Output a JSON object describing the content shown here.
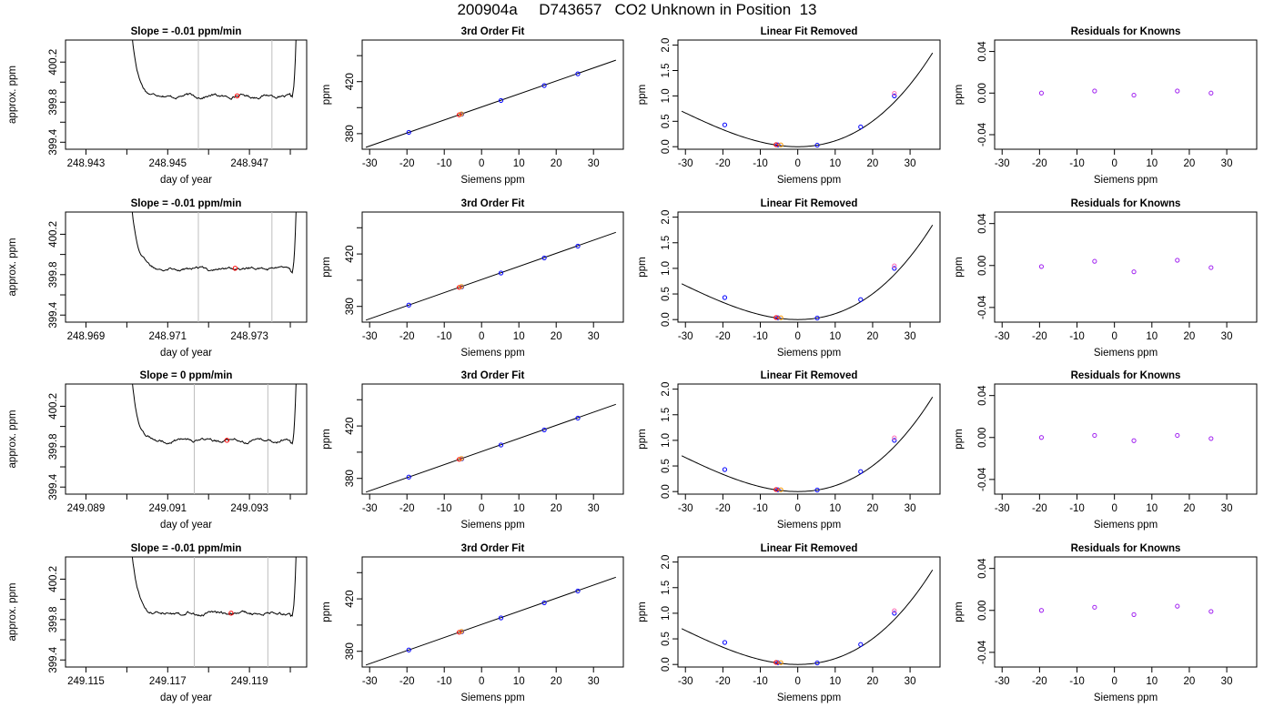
{
  "figure_title": "200904a     D743657   CO2 Unknown in Position  13",
  "colors": {
    "trace": "#000000",
    "marker_blue": "#0000ff",
    "marker_red": "#ff0000",
    "marker_purple": "#a020f0",
    "marker_orange": "#ff9900",
    "marker_pink": "#ff69b4",
    "guide_line": "#bebebe"
  },
  "chart_data": [
    {
      "type": "line",
      "row": 1,
      "panel": "time",
      "title": "Slope =  -0.01  ppm/min",
      "xlabel": "day of year",
      "ylabel": "approx. ppm",
      "xlim": [
        248.9425,
        248.9484
      ],
      "ylim": [
        399.33,
        400.42
      ],
      "x_ticks": [
        "248.943",
        "248.945",
        "248.947"
      ],
      "x_tick_values": [
        248.943,
        248.945,
        248.947
      ],
      "x_minor_ticks": [
        248.944,
        248.946,
        248.948
      ],
      "y_ticks": [
        "399.4",
        "399.8",
        "400.2"
      ],
      "y_tick_values": [
        399.4,
        399.8,
        400.2
      ],
      "y_minor_ticks": [
        399.6,
        400.0
      ],
      "t_start": 248.944,
      "t_end": 248.9482,
      "baseline": 399.86,
      "marker": [
        248.9467,
        399.863
      ],
      "guide_lines": [
        248.94575,
        248.94755
      ]
    },
    {
      "type": "scatter",
      "row": 1,
      "panel": "fit",
      "title": "3rd Order Fit",
      "xlabel": "Siemens ppm",
      "ylabel": "ppm",
      "xlim": [
        -32,
        38
      ],
      "ylim": [
        368,
        452
      ],
      "x_ticks": [
        -30,
        -20,
        -10,
        0,
        10,
        20,
        30
      ],
      "y_ticks": [
        "380",
        "420"
      ],
      "y_tick_values": [
        380,
        420
      ],
      "y_minor_ticks": [
        400,
        440
      ],
      "line": [
        [
          -31,
          369.5
        ],
        [
          36,
          436.5
        ]
      ],
      "points": [
        [
          -19.5,
          381
        ],
        [
          -5.3,
          395
        ],
        [
          5.2,
          405.5
        ],
        [
          16.8,
          417
        ],
        [
          25.8,
          426
        ]
      ],
      "unknown_x": -6.0
    },
    {
      "type": "line",
      "row": 1,
      "panel": "linear_removed",
      "title": "Linear Fit Removed",
      "xlabel": "Siemens ppm",
      "ylabel": "ppm",
      "xlim": [
        -32,
        38
      ],
      "ylim": [
        -0.05,
        2.1
      ],
      "x_ticks": [
        -30,
        -20,
        -10,
        0,
        10,
        20,
        30
      ],
      "y_ticks": [
        "0.0",
        "0.5",
        "1.0",
        "1.5",
        "2.0"
      ],
      "y_tick_values": [
        0,
        0.5,
        1.0,
        1.5,
        2.0
      ],
      "curve_coef": [
        0.0,
        0.00128,
        1.42e-05
      ],
      "points": [
        [
          -19.5,
          0.43
        ],
        [
          -5.3,
          0.035
        ],
        [
          5.2,
          0.03
        ],
        [
          16.8,
          0.39
        ],
        [
          25.8,
          1.0
        ]
      ],
      "unknown_x": -5.8,
      "unknown_y": 0.04,
      "top_point": [
        25.8,
        1.05
      ]
    },
    {
      "type": "scatter",
      "row": 1,
      "panel": "residuals",
      "title": "Residuals for Knowns",
      "xlabel": "Siemens ppm",
      "ylabel": "ppm",
      "xlim": [
        -32,
        38
      ],
      "ylim": [
        -0.054,
        0.051
      ],
      "x_ticks": [
        -30,
        -20,
        -10,
        0,
        10,
        20,
        30
      ],
      "y_ticks": [
        "-0.04",
        "0.00",
        "0.04"
      ],
      "y_tick_values": [
        -0.04,
        0.0,
        0.04
      ],
      "points": [
        [
          -19.5,
          0.0
        ],
        [
          -5.3,
          0.002
        ],
        [
          5.2,
          -0.002
        ],
        [
          16.8,
          0.002
        ],
        [
          25.8,
          0.0
        ]
      ]
    },
    {
      "type": "line",
      "row": 2,
      "panel": "time",
      "title": "Slope =  -0.01  ppm/min",
      "xlabel": "day of year",
      "ylabel": "approx. ppm",
      "xlim": [
        248.9685,
        248.9744
      ],
      "ylim": [
        399.33,
        400.42
      ],
      "x_ticks": [
        "248.969",
        "248.971",
        "248.973"
      ],
      "x_tick_values": [
        248.969,
        248.971,
        248.973
      ],
      "x_minor_ticks": [
        248.97,
        248.972,
        248.974
      ],
      "y_ticks": [
        "399.4",
        "399.8",
        "400.2"
      ],
      "y_tick_values": [
        399.4,
        399.8,
        400.2
      ],
      "y_minor_ticks": [
        399.6,
        400.0
      ],
      "t_start": 248.97,
      "t_end": 248.9742,
      "baseline": 399.86,
      "marker": [
        248.97265,
        399.863
      ],
      "guide_lines": [
        248.97175,
        248.97355
      ]
    },
    {
      "type": "scatter",
      "row": 2,
      "panel": "fit",
      "title": "3rd Order Fit",
      "xlabel": "Siemens ppm",
      "ylabel": "ppm",
      "xlim": [
        -32,
        38
      ],
      "ylim": [
        368,
        452
      ],
      "x_ticks": [
        -30,
        -20,
        -10,
        0,
        10,
        20,
        30
      ],
      "y_ticks": [
        "380",
        "420"
      ],
      "y_tick_values": [
        380,
        420
      ],
      "y_minor_ticks": [
        400,
        440
      ],
      "line": [
        [
          -31,
          369.5
        ],
        [
          36,
          436.5
        ]
      ],
      "points": [
        [
          -19.5,
          381
        ],
        [
          -5.3,
          395
        ],
        [
          5.2,
          405.5
        ],
        [
          16.8,
          417
        ],
        [
          25.8,
          426
        ]
      ],
      "unknown_x": -6.0
    },
    {
      "type": "line",
      "row": 2,
      "panel": "linear_removed",
      "title": "Linear Fit Removed",
      "xlabel": "Siemens ppm",
      "ylabel": "ppm",
      "xlim": [
        -32,
        38
      ],
      "ylim": [
        -0.05,
        2.1
      ],
      "x_ticks": [
        -30,
        -20,
        -10,
        0,
        10,
        20,
        30
      ],
      "y_ticks": [
        "0.0",
        "0.5",
        "1.0",
        "1.5",
        "2.0"
      ],
      "y_tick_values": [
        0,
        0.5,
        1.0,
        1.5,
        2.0
      ],
      "curve_coef": [
        0.0,
        0.00128,
        1.42e-05
      ],
      "points": [
        [
          -19.5,
          0.43
        ],
        [
          -5.3,
          0.035
        ],
        [
          5.2,
          0.03
        ],
        [
          16.8,
          0.39
        ],
        [
          25.8,
          1.0
        ]
      ],
      "unknown_x": -5.8,
      "unknown_y": 0.04,
      "top_point": [
        25.8,
        1.05
      ]
    },
    {
      "type": "scatter",
      "row": 2,
      "panel": "residuals",
      "title": "Residuals for Knowns",
      "xlabel": "Siemens ppm",
      "ylabel": "ppm",
      "xlim": [
        -32,
        38
      ],
      "ylim": [
        -0.054,
        0.051
      ],
      "x_ticks": [
        -30,
        -20,
        -10,
        0,
        10,
        20,
        30
      ],
      "y_ticks": [
        "-0.04",
        "0.00",
        "0.04"
      ],
      "y_tick_values": [
        -0.04,
        0.0,
        0.04
      ],
      "points": [
        [
          -19.5,
          -0.001
        ],
        [
          -5.3,
          0.004
        ],
        [
          5.2,
          -0.006
        ],
        [
          16.8,
          0.005
        ],
        [
          25.8,
          -0.002
        ]
      ]
    },
    {
      "type": "line",
      "row": 3,
      "panel": "time",
      "title": "Slope =  0  ppm/min",
      "xlabel": "day of year",
      "ylabel": "approx. ppm",
      "xlim": [
        249.0885,
        249.0944
      ],
      "ylim": [
        399.33,
        400.42
      ],
      "x_ticks": [
        "249.089",
        "249.091",
        "249.093"
      ],
      "x_tick_values": [
        249.089,
        249.091,
        249.093
      ],
      "x_minor_ticks": [
        249.09,
        249.092,
        249.094
      ],
      "y_ticks": [
        "399.4",
        "399.8",
        "400.2"
      ],
      "y_tick_values": [
        399.4,
        399.8,
        400.2
      ],
      "y_minor_ticks": [
        399.6,
        400.0
      ],
      "t_start": 249.09,
      "t_end": 249.0942,
      "baseline": 399.86,
      "marker": [
        249.09245,
        399.863
      ],
      "guide_lines": [
        249.09165,
        249.09345
      ]
    },
    {
      "type": "scatter",
      "row": 3,
      "panel": "fit",
      "title": "3rd Order Fit",
      "xlabel": "Siemens ppm",
      "ylabel": "ppm",
      "xlim": [
        -32,
        38
      ],
      "ylim": [
        368,
        452
      ],
      "x_ticks": [
        -30,
        -20,
        -10,
        0,
        10,
        20,
        30
      ],
      "y_ticks": [
        "380",
        "420"
      ],
      "y_tick_values": [
        380,
        420
      ],
      "y_minor_ticks": [
        400,
        440
      ],
      "line": [
        [
          -31,
          369.5
        ],
        [
          36,
          436.5
        ]
      ],
      "points": [
        [
          -19.5,
          381
        ],
        [
          -5.3,
          395
        ],
        [
          5.2,
          405.5
        ],
        [
          16.8,
          417
        ],
        [
          25.8,
          426
        ]
      ],
      "unknown_x": -6.0
    },
    {
      "type": "line",
      "row": 3,
      "panel": "linear_removed",
      "title": "Linear Fit Removed",
      "xlabel": "Siemens ppm",
      "ylabel": "ppm",
      "xlim": [
        -32,
        38
      ],
      "ylim": [
        -0.05,
        2.1
      ],
      "x_ticks": [
        -30,
        -20,
        -10,
        0,
        10,
        20,
        30
      ],
      "y_ticks": [
        "0.0",
        "0.5",
        "1.0",
        "1.5",
        "2.0"
      ],
      "y_tick_values": [
        0,
        0.5,
        1.0,
        1.5,
        2.0
      ],
      "curve_coef": [
        0.0,
        0.00128,
        1.42e-05
      ],
      "points": [
        [
          -19.5,
          0.43
        ],
        [
          -5.3,
          0.035
        ],
        [
          5.2,
          0.03
        ],
        [
          16.8,
          0.39
        ],
        [
          25.8,
          1.0
        ]
      ],
      "unknown_x": -5.8,
      "unknown_y": 0.04,
      "top_point": [
        25.8,
        1.05
      ]
    },
    {
      "type": "scatter",
      "row": 3,
      "panel": "residuals",
      "title": "Residuals for Knowns",
      "xlabel": "Siemens ppm",
      "ylabel": "ppm",
      "xlim": [
        -32,
        38
      ],
      "ylim": [
        -0.054,
        0.051
      ],
      "x_ticks": [
        -30,
        -20,
        -10,
        0,
        10,
        20,
        30
      ],
      "y_ticks": [
        "-0.04",
        "0.00",
        "0.04"
      ],
      "y_tick_values": [
        -0.04,
        0.0,
        0.04
      ],
      "points": [
        [
          -19.5,
          0.0
        ],
        [
          -5.3,
          0.002
        ],
        [
          5.2,
          -0.003
        ],
        [
          16.8,
          0.002
        ],
        [
          25.8,
          -0.001
        ]
      ]
    },
    {
      "type": "line",
      "row": 4,
      "panel": "time",
      "title": "Slope =  -0.01  ppm/min",
      "xlabel": "day of year",
      "ylabel": "approx. ppm",
      "xlim": [
        249.1145,
        249.1204
      ],
      "ylim": [
        399.33,
        400.42
      ],
      "x_ticks": [
        "249.115",
        "249.117",
        "249.119"
      ],
      "x_tick_values": [
        249.115,
        249.117,
        249.119
      ],
      "x_minor_ticks": [
        249.116,
        249.118,
        249.12
      ],
      "y_ticks": [
        "399.4",
        "399.8",
        "400.2"
      ],
      "y_tick_values": [
        399.4,
        399.8,
        400.2
      ],
      "y_minor_ticks": [
        399.6,
        400.0
      ],
      "t_start": 249.116,
      "t_end": 249.1202,
      "baseline": 399.86,
      "marker": [
        249.11855,
        399.863
      ],
      "guide_lines": [
        249.11765,
        249.11945
      ]
    },
    {
      "type": "scatter",
      "row": 4,
      "panel": "fit",
      "title": "3rd Order Fit",
      "xlabel": "Siemens ppm",
      "ylabel": "ppm",
      "xlim": [
        -32,
        38
      ],
      "ylim": [
        368,
        452
      ],
      "x_ticks": [
        -30,
        -20,
        -10,
        0,
        10,
        20,
        30
      ],
      "y_ticks": [
        "380",
        "420"
      ],
      "y_tick_values": [
        380,
        420
      ],
      "y_minor_ticks": [
        400,
        440
      ],
      "line": [
        [
          -31,
          369.5
        ],
        [
          36,
          436.5
        ]
      ],
      "points": [
        [
          -19.5,
          381
        ],
        [
          -5.3,
          395
        ],
        [
          5.2,
          405.5
        ],
        [
          16.8,
          417
        ],
        [
          25.8,
          426
        ]
      ],
      "unknown_x": -6.0
    },
    {
      "type": "line",
      "row": 4,
      "panel": "linear_removed",
      "title": "Linear Fit Removed",
      "xlabel": "Siemens ppm",
      "ylabel": "ppm",
      "xlim": [
        -32,
        38
      ],
      "ylim": [
        -0.05,
        2.1
      ],
      "x_ticks": [
        -30,
        -20,
        -10,
        0,
        10,
        20,
        30
      ],
      "y_ticks": [
        "0.0",
        "0.5",
        "1.0",
        "1.5",
        "2.0"
      ],
      "y_tick_values": [
        0,
        0.5,
        1.0,
        1.5,
        2.0
      ],
      "curve_coef": [
        0.0,
        0.00128,
        1.42e-05
      ],
      "points": [
        [
          -19.5,
          0.43
        ],
        [
          -5.3,
          0.035
        ],
        [
          5.2,
          0.03
        ],
        [
          16.8,
          0.39
        ],
        [
          25.8,
          1.0
        ]
      ],
      "unknown_x": -5.8,
      "unknown_y": 0.04,
      "top_point": [
        25.8,
        1.05
      ]
    },
    {
      "type": "scatter",
      "row": 4,
      "panel": "residuals",
      "title": "Residuals for Knowns",
      "xlabel": "Siemens ppm",
      "ylabel": "ppm",
      "xlim": [
        -32,
        38
      ],
      "ylim": [
        -0.054,
        0.051
      ],
      "x_ticks": [
        -30,
        -20,
        -10,
        0,
        10,
        20,
        30
      ],
      "y_ticks": [
        "-0.04",
        "0.00",
        "0.04"
      ],
      "y_tick_values": [
        -0.04,
        0.0,
        0.04
      ],
      "points": [
        [
          -19.5,
          0.0
        ],
        [
          -5.3,
          0.003
        ],
        [
          5.2,
          -0.004
        ],
        [
          16.8,
          0.004
        ],
        [
          25.8,
          -0.001
        ]
      ]
    }
  ]
}
